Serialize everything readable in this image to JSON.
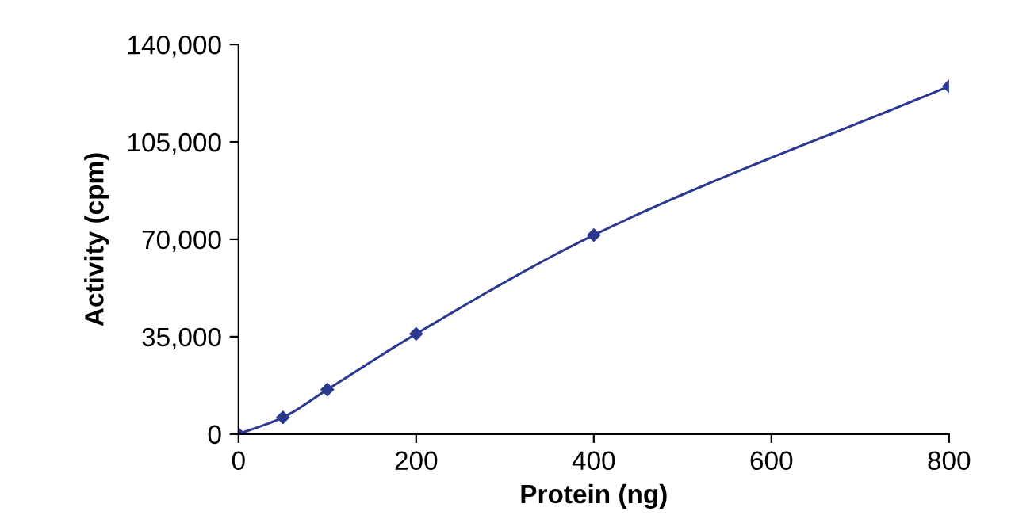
{
  "chart_data": {
    "type": "line",
    "xlabel": "Protein (ng)",
    "ylabel": "Activity (cpm)",
    "x": [
      0,
      50,
      100,
      200,
      400,
      800
    ],
    "series": [
      {
        "color": "#2b3990",
        "values": [
          0,
          6000,
          16000,
          36000,
          71500,
          125000
        ]
      }
    ],
    "xlim": [
      0,
      800
    ],
    "xticks": [
      0,
      200,
      400,
      600,
      800
    ],
    "ylim": [
      0,
      140000
    ],
    "yticks": [
      {
        "value": 0,
        "label": "0"
      },
      {
        "value": 35000,
        "label": "35,000"
      },
      {
        "value": 70000,
        "label": "70,000"
      },
      {
        "value": 105000,
        "label": "105,000"
      },
      {
        "value": 140000,
        "label": "140,000"
      }
    ],
    "grid": false,
    "legend": false,
    "marker": "diamond",
    "line_style": "solid"
  }
}
